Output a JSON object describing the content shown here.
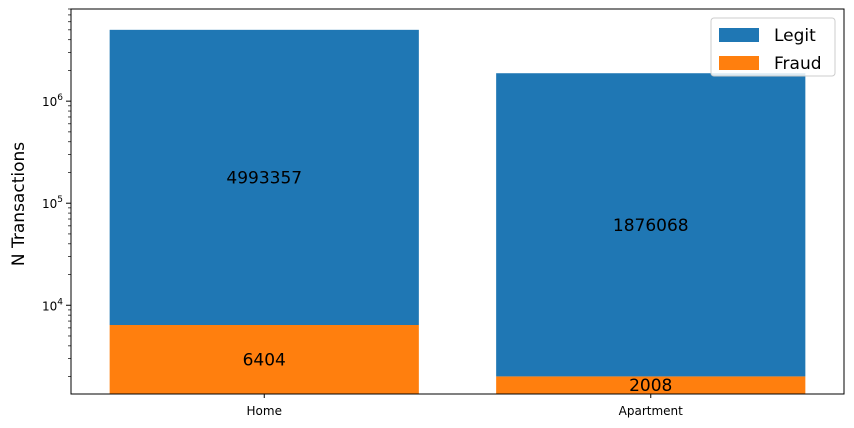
{
  "chart_data": {
    "type": "bar",
    "stacked": true,
    "categories": [
      "Home",
      "Apartment"
    ],
    "series": [
      {
        "name": "Fraud",
        "values": [
          6404,
          2008
        ],
        "color": "#ff7f0e"
      },
      {
        "name": "Legit",
        "values": [
          4993357,
          1876068
        ],
        "color": "#1f77b4"
      }
    ],
    "bar_labels": {
      "Legit": [
        "4993357",
        "1876068"
      ],
      "Fraud": [
        "6404",
        "2008"
      ]
    },
    "title": "",
    "xlabel": "",
    "ylabel": "N Transactions",
    "yscale": "log",
    "ylim": [
      1350,
      8000000
    ],
    "yticks": [
      {
        "value": 10000,
        "base": "10",
        "exp": "4"
      },
      {
        "value": 100000,
        "base": "10",
        "exp": "5"
      },
      {
        "value": 1000000,
        "base": "10",
        "exp": "6"
      }
    ],
    "legend": {
      "placement": "top-right",
      "entries": [
        "Legit",
        "Fraud"
      ]
    },
    "grid": false
  }
}
